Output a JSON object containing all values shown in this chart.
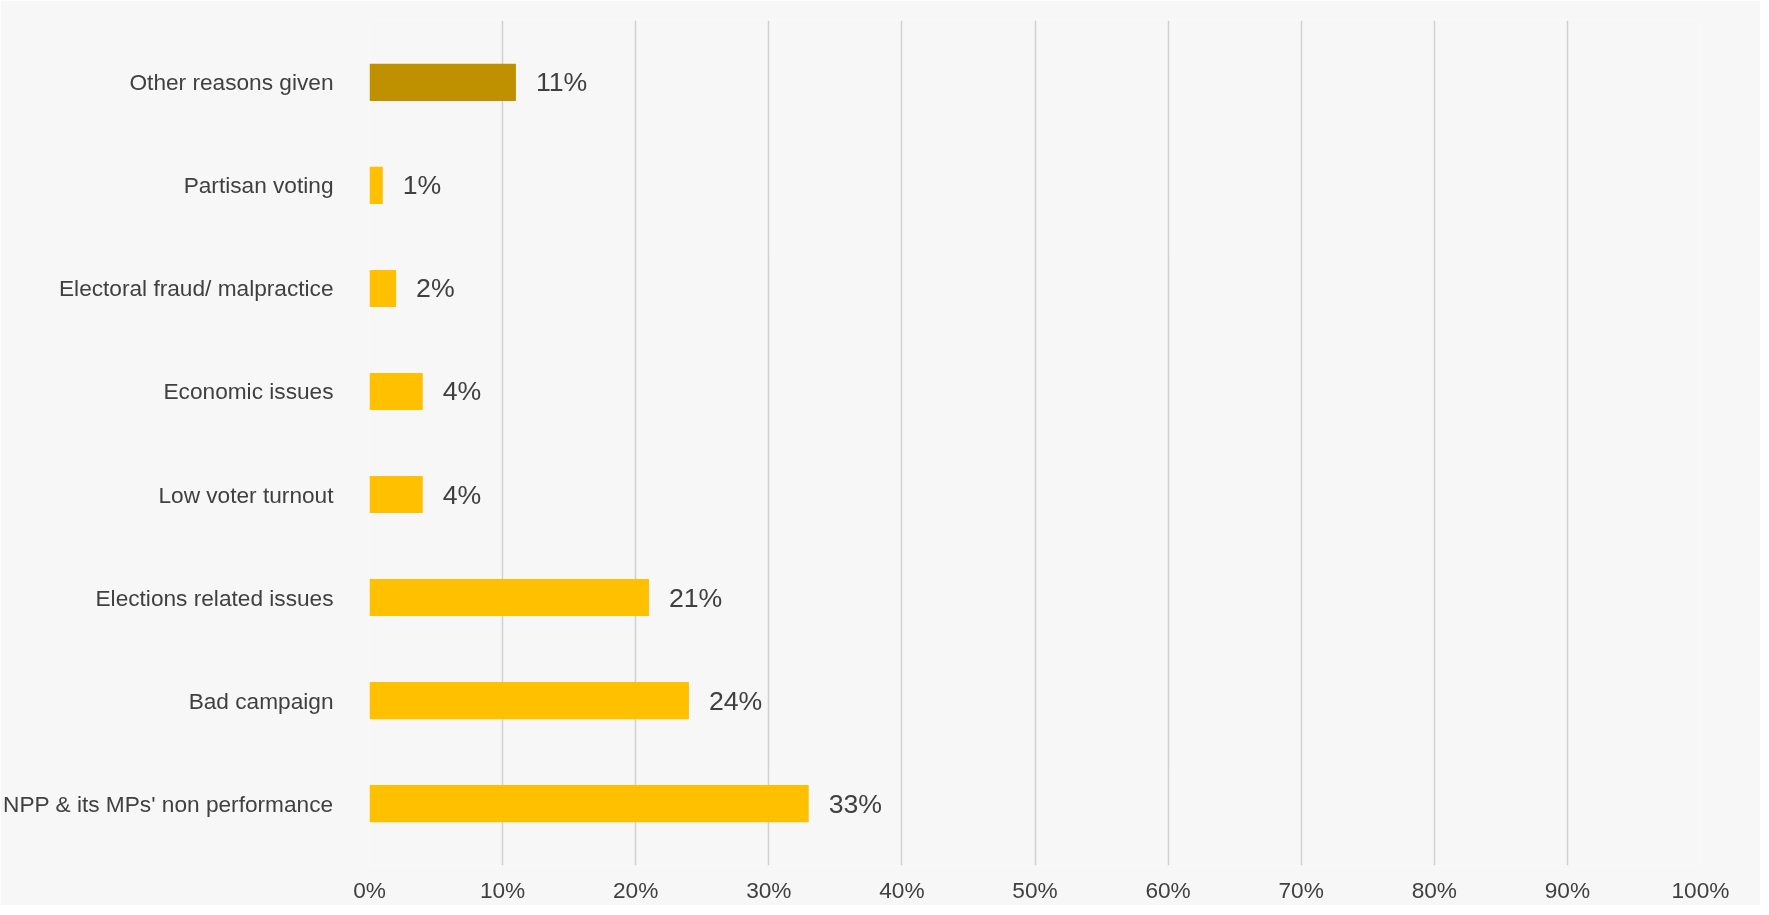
{
  "chart_data": {
    "type": "bar",
    "orientation": "horizontal",
    "categories": [
      "Other reasons given",
      "Partisan voting",
      "Electoral fraud/ malpractice",
      "Economic issues",
      "Low voter turnout",
      "Elections related issues",
      "Bad campaign",
      "NPP & its MPs' non performance"
    ],
    "values": [
      11,
      1,
      2,
      4,
      4,
      21,
      24,
      33
    ],
    "colors": [
      "#bf9000",
      "#ffc000",
      "#ffc000",
      "#ffc000",
      "#ffc000",
      "#ffc000",
      "#ffc000",
      "#ffc000"
    ],
    "value_labels": [
      "11%",
      "1%",
      "2%",
      "4%",
      "4%",
      "21%",
      "24%",
      "33%"
    ],
    "xlim": [
      0,
      100
    ],
    "xticks": [
      {
        "value": 0,
        "label": "0%"
      },
      {
        "value": 10,
        "label": "10%"
      },
      {
        "value": 20,
        "label": "20%"
      },
      {
        "value": 30,
        "label": "30%"
      },
      {
        "value": 40,
        "label": "40%"
      },
      {
        "value": 50,
        "label": "50%"
      },
      {
        "value": 60,
        "label": "60%"
      },
      {
        "value": 70,
        "label": "70%"
      },
      {
        "value": 80,
        "label": "80%"
      },
      {
        "value": 90,
        "label": "90%"
      },
      {
        "value": 100,
        "label": "100%"
      }
    ],
    "grid": "x"
  }
}
